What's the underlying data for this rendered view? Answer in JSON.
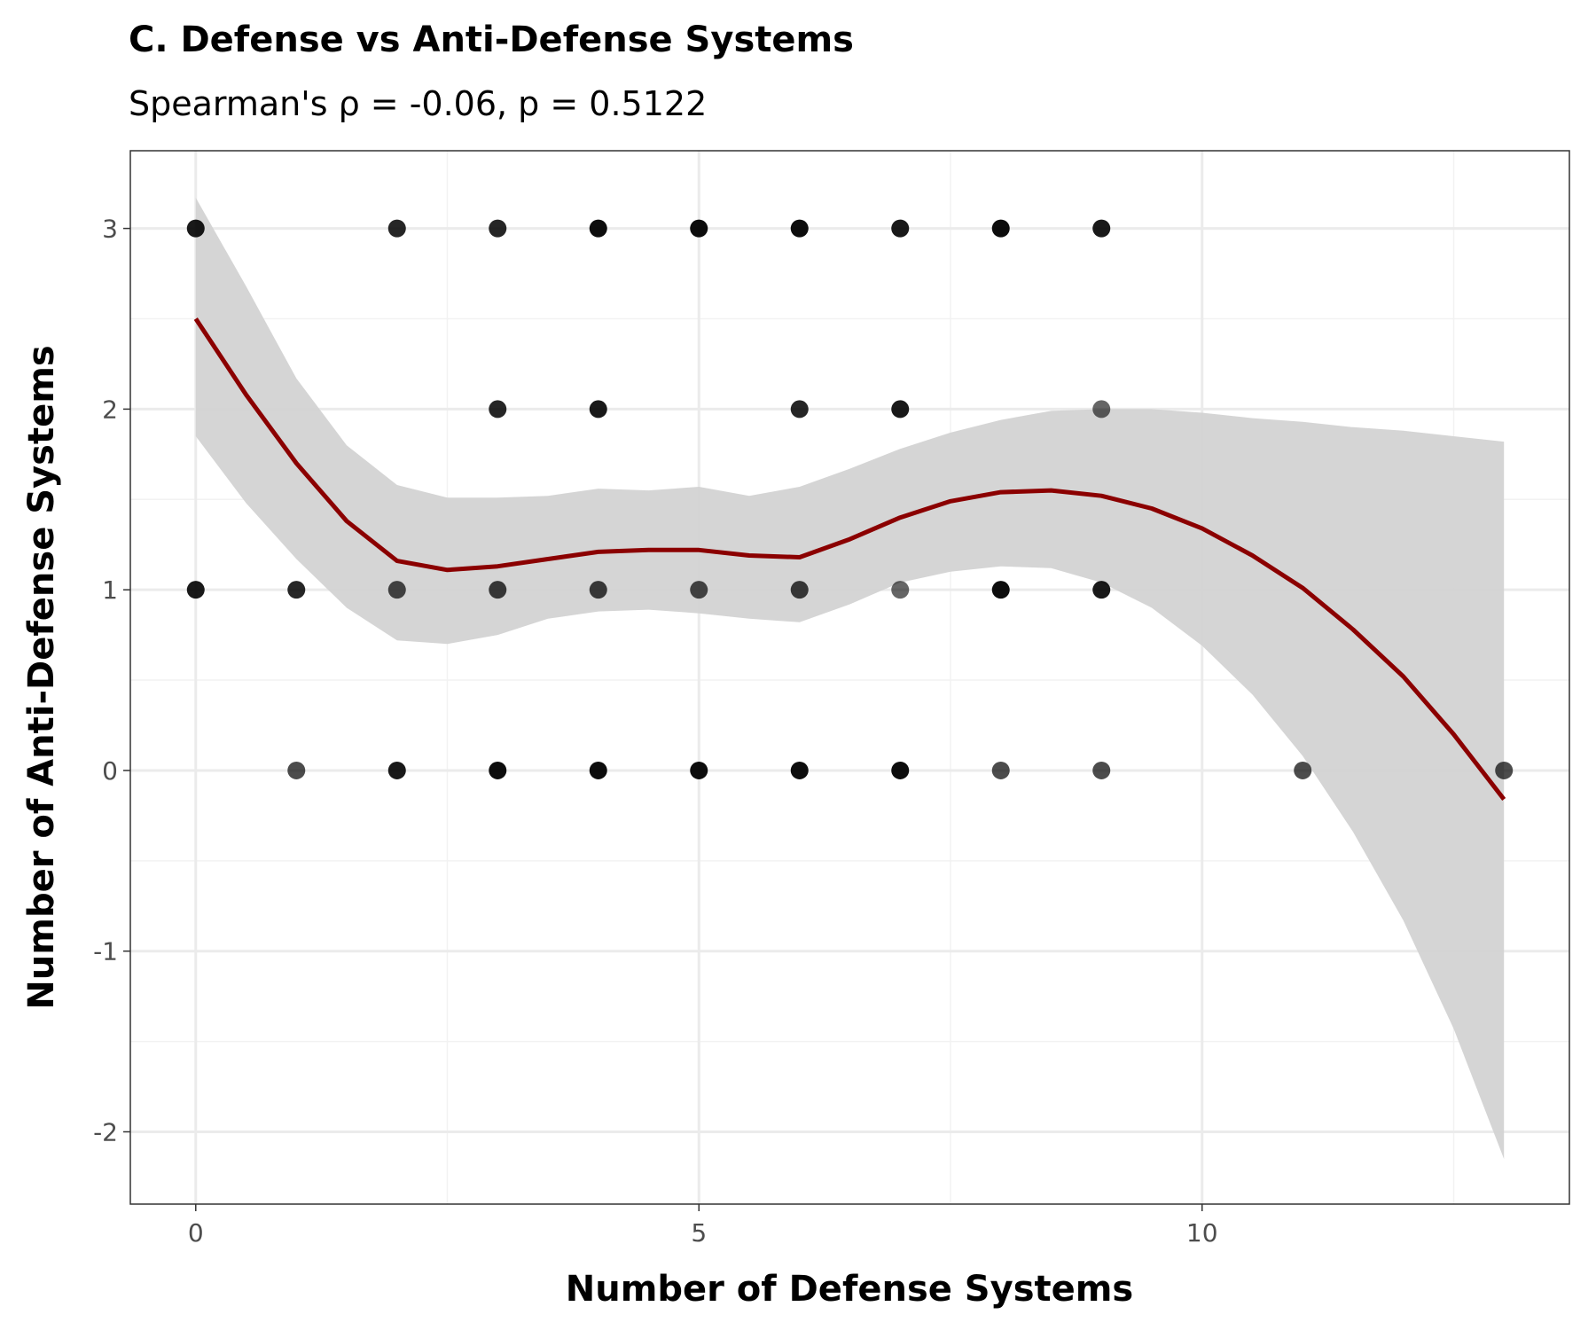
{
  "chart_data": {
    "type": "scatter",
    "title": "C. Defense vs Anti-Defense Systems",
    "subtitle": "Spearman's ρ = -0.06, p = 0.5122",
    "xlabel": "Number of Defense Systems",
    "ylabel": "Number of Anti-Defense Systems",
    "xlim": [
      -0.65,
      13.65
    ],
    "ylim": [
      -2.4,
      3.43
    ],
    "x_ticks": [
      {
        "value": 0,
        "label": "0"
      },
      {
        "value": 5,
        "label": "5"
      },
      {
        "value": 10,
        "label": "10"
      }
    ],
    "y_ticks": [
      {
        "value": -2,
        "label": "-2"
      },
      {
        "value": -1,
        "label": "-1"
      },
      {
        "value": 0,
        "label": "0"
      },
      {
        "value": 1,
        "label": "1"
      },
      {
        "value": 2,
        "label": "2"
      },
      {
        "value": 3,
        "label": "3"
      }
    ],
    "grid": true,
    "points": [
      {
        "x": 0,
        "y": 3,
        "alpha": 0.9
      },
      {
        "x": 2,
        "y": 3,
        "alpha": 0.85
      },
      {
        "x": 3,
        "y": 3,
        "alpha": 0.85
      },
      {
        "x": 4,
        "y": 3,
        "alpha": 0.95
      },
      {
        "x": 5,
        "y": 3,
        "alpha": 0.95
      },
      {
        "x": 6,
        "y": 3,
        "alpha": 0.95
      },
      {
        "x": 7,
        "y": 3,
        "alpha": 0.9
      },
      {
        "x": 8,
        "y": 3,
        "alpha": 0.95
      },
      {
        "x": 9,
        "y": 3,
        "alpha": 0.9
      },
      {
        "x": 3,
        "y": 2,
        "alpha": 0.85
      },
      {
        "x": 4,
        "y": 2,
        "alpha": 0.9
      },
      {
        "x": 6,
        "y": 2,
        "alpha": 0.85
      },
      {
        "x": 7,
        "y": 2,
        "alpha": 0.9
      },
      {
        "x": 9,
        "y": 2,
        "alpha": 0.6
      },
      {
        "x": 0,
        "y": 1,
        "alpha": 0.9
      },
      {
        "x": 1,
        "y": 1,
        "alpha": 0.85
      },
      {
        "x": 2,
        "y": 1,
        "alpha": 0.7
      },
      {
        "x": 3,
        "y": 1,
        "alpha": 0.75
      },
      {
        "x": 4,
        "y": 1,
        "alpha": 0.75
      },
      {
        "x": 5,
        "y": 1,
        "alpha": 0.7
      },
      {
        "x": 6,
        "y": 1,
        "alpha": 0.75
      },
      {
        "x": 7,
        "y": 1,
        "alpha": 0.6
      },
      {
        "x": 8,
        "y": 1,
        "alpha": 0.95
      },
      {
        "x": 9,
        "y": 1,
        "alpha": 0.9
      },
      {
        "x": 1,
        "y": 0,
        "alpha": 0.7
      },
      {
        "x": 2,
        "y": 0,
        "alpha": 0.9
      },
      {
        "x": 3,
        "y": 0,
        "alpha": 0.95
      },
      {
        "x": 4,
        "y": 0,
        "alpha": 0.95
      },
      {
        "x": 5,
        "y": 0,
        "alpha": 0.95
      },
      {
        "x": 6,
        "y": 0,
        "alpha": 0.95
      },
      {
        "x": 7,
        "y": 0,
        "alpha": 0.95
      },
      {
        "x": 8,
        "y": 0,
        "alpha": 0.7
      },
      {
        "x": 9,
        "y": 0,
        "alpha": 0.7
      },
      {
        "x": 11,
        "y": 0,
        "alpha": 0.7
      },
      {
        "x": 13,
        "y": 0,
        "alpha": 0.7
      }
    ],
    "smooth": {
      "method": "loess",
      "color": "#8b0000",
      "ribbon_color": "#d3d3d3",
      "x": [
        0,
        0.5,
        1,
        1.5,
        2,
        2.5,
        3,
        3.5,
        4,
        4.5,
        5,
        5.5,
        6,
        6.5,
        7,
        7.5,
        8,
        8.5,
        9,
        9.5,
        10,
        10.5,
        11,
        11.5,
        12,
        12.5,
        13
      ],
      "y": [
        2.5,
        2.08,
        1.7,
        1.38,
        1.16,
        1.11,
        1.13,
        1.17,
        1.21,
        1.22,
        1.22,
        1.19,
        1.18,
        1.28,
        1.4,
        1.49,
        1.54,
        1.55,
        1.52,
        1.45,
        1.34,
        1.19,
        1.01,
        0.78,
        0.52,
        0.2,
        -0.16
      ],
      "upper": [
        3.17,
        2.68,
        2.17,
        1.8,
        1.58,
        1.51,
        1.51,
        1.52,
        1.56,
        1.55,
        1.57,
        1.52,
        1.57,
        1.67,
        1.78,
        1.87,
        1.94,
        1.99,
        2.0,
        2.0,
        1.98,
        1.95,
        1.93,
        1.9,
        1.88,
        1.85,
        1.82
      ],
      "lower": [
        1.85,
        1.48,
        1.17,
        0.9,
        0.72,
        0.7,
        0.75,
        0.84,
        0.88,
        0.89,
        0.87,
        0.84,
        0.82,
        0.92,
        1.04,
        1.1,
        1.13,
        1.12,
        1.04,
        0.9,
        0.69,
        0.42,
        0.08,
        -0.34,
        -0.83,
        -1.43,
        -2.15
      ]
    }
  }
}
